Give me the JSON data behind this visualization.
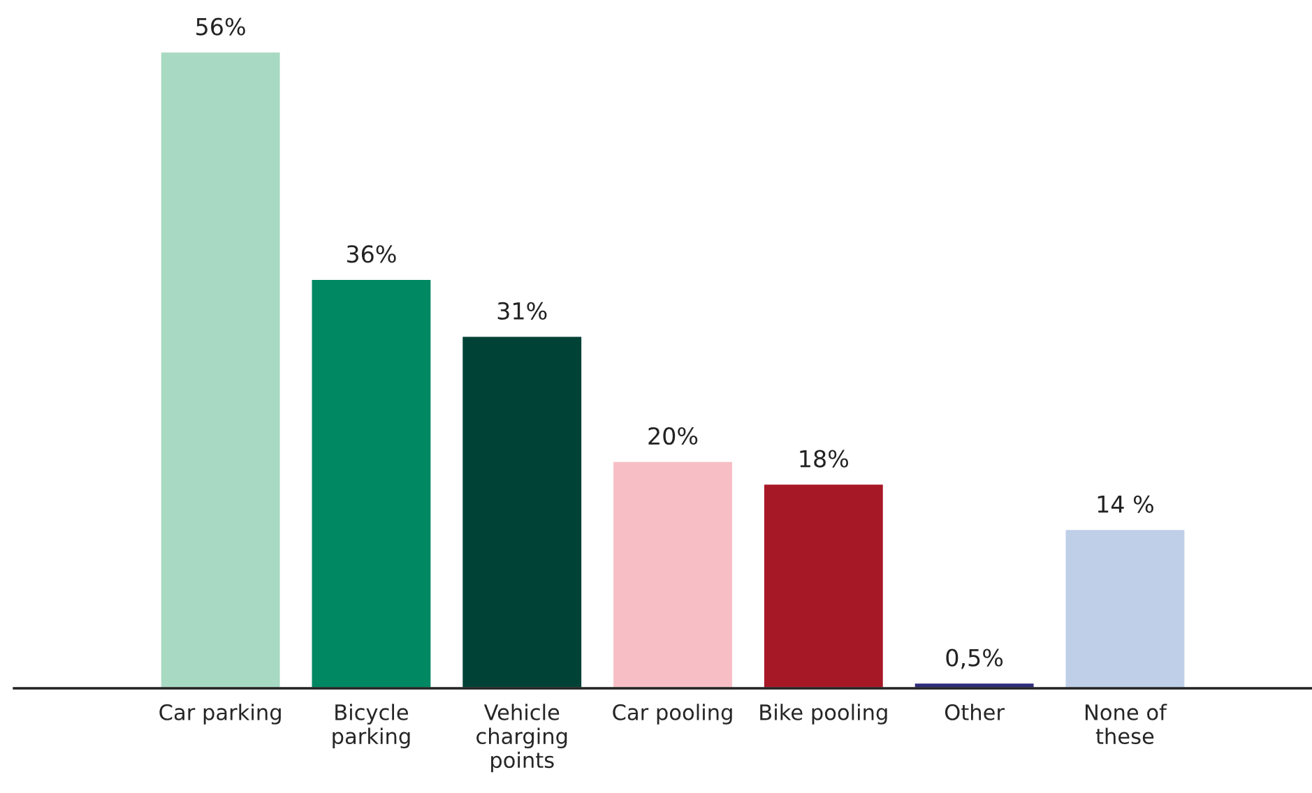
{
  "chart_data": {
    "type": "bar",
    "categories": [
      "Car parking",
      "Bicycle\nparking",
      "Vehicle\ncharging\npoints",
      "Car pooling",
      "Bike pooling",
      "Other",
      "None of\nthese"
    ],
    "values": [
      56,
      36,
      31,
      20,
      18,
      0.5,
      14
    ],
    "colors": [
      "#a8d9c2",
      "#008862",
      "#004236",
      "#f7bfc5",
      "#a71826",
      "#2f2b7c",
      "#bfcfe8"
    ],
    "value_labels": [
      "56%",
      "36%",
      "31%",
      "20%",
      "18%",
      "0,5%",
      "14 %"
    ],
    "tick_labels": "x",
    "grid": false,
    "legend": false
  }
}
